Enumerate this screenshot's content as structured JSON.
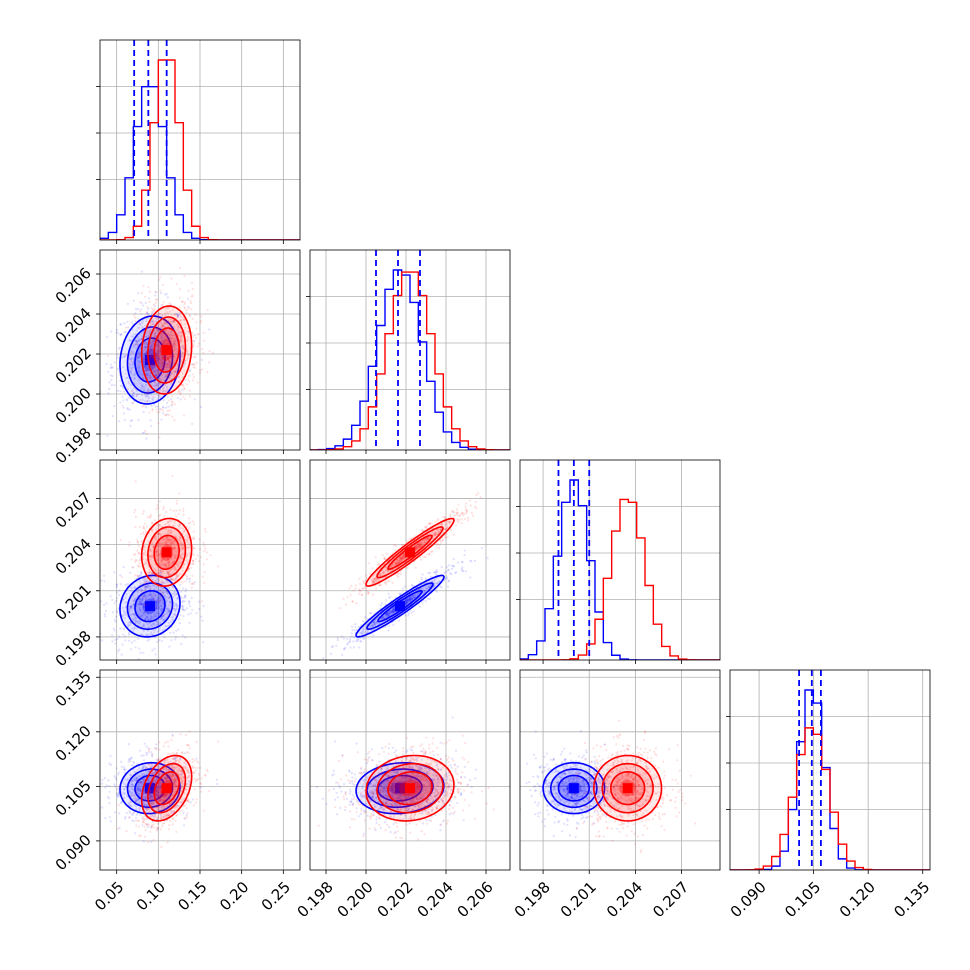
{
  "colors": {
    "series_a": "#0000ff",
    "series_b": "#ff0000",
    "grid": "#b0b0b0"
  },
  "chart_data": {
    "type": "corner",
    "title": "",
    "grid": true,
    "legend": "none",
    "parameters": [
      {
        "range": [
          0.03,
          0.27
        ],
        "ticks": [
          0.05,
          0.1,
          0.15,
          0.2,
          0.25
        ],
        "tick_labels": [
          "0.05",
          "0.10",
          "0.15",
          "0.20",
          "0.25"
        ]
      },
      {
        "range": [
          0.1972,
          0.2072
        ],
        "ticks": [
          0.198,
          0.2,
          0.202,
          0.204,
          0.206
        ],
        "tick_labels": [
          "0.198",
          "0.200",
          "0.202",
          "0.204",
          "0.206"
        ]
      },
      {
        "range": [
          0.1965,
          0.2095
        ],
        "ticks": [
          0.198,
          0.201,
          0.204,
          0.207
        ],
        "tick_labels": [
          "0.198",
          "0.201",
          "0.204",
          "0.207"
        ]
      },
      {
        "range": [
          0.082,
          0.137
        ],
        "ticks": [
          0.09,
          0.105,
          0.12,
          0.135
        ],
        "tick_labels": [
          "0.090",
          "0.105",
          "0.120",
          "0.135"
        ]
      }
    ],
    "series": [
      {
        "color": "#0000ff",
        "quantiles": [
          [
            0.071,
            0.088,
            0.11
          ],
          [
            0.2005,
            0.2016,
            0.2027
          ],
          [
            0.199,
            0.2,
            0.201
          ],
          [
            0.101,
            0.1045,
            0.107
          ]
        ],
        "means": [
          0.09,
          0.2017,
          0.2,
          0.1045
        ],
        "sigmas": [
          0.018,
          0.0011,
          0.001,
          0.0035
        ],
        "correlations": [
          [
            1,
            0.1,
            0.1,
            0.05
          ],
          [
            0.1,
            1,
            0.95,
            0.1
          ],
          [
            0.1,
            0.95,
            1,
            0.0
          ],
          [
            0.05,
            0.1,
            0.0,
            1
          ]
        ]
      },
      {
        "color": "#ff0000",
        "means": [
          0.11,
          0.2022,
          0.2035,
          0.1045
        ],
        "sigmas": [
          0.015,
          0.0011,
          0.0011,
          0.0045
        ],
        "correlations": [
          [
            1,
            0.1,
            0.1,
            0.35
          ],
          [
            0.1,
            1,
            0.95,
            0.1
          ],
          [
            0.1,
            0.95,
            1,
            0.0
          ],
          [
            0.35,
            0.1,
            0.0,
            1
          ]
        ]
      }
    ]
  }
}
